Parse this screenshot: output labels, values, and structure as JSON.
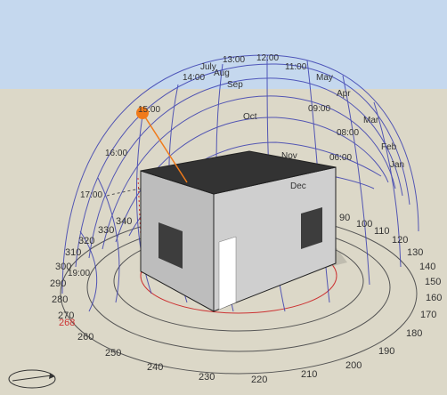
{
  "hour_labels": [
    "11:00",
    "12:00",
    "13:00",
    "14:00",
    "15:00",
    "16:00",
    "17:00",
    "19:00",
    "08:00",
    "09:00",
    "06:00"
  ],
  "month_labels": [
    "July",
    "Aug",
    "Sep",
    "Oct",
    "Nov",
    "Dec",
    "Jan",
    "Feb",
    "Mar",
    "Apr",
    "May"
  ],
  "azimuth_labels": [
    "90",
    "100",
    "110",
    "120",
    "130",
    "140",
    "150",
    "160",
    "170",
    "180",
    "190",
    "200",
    "210",
    "220",
    "230",
    "240",
    "250",
    "260",
    "270",
    "280",
    "290",
    "300",
    "310",
    "320",
    "330",
    "340"
  ],
  "highlight_azimuth": "268",
  "sun": {
    "color": "#f07a1a"
  },
  "colors": {
    "sky": "#c5d8ee",
    "ground": "#dcd8c8",
    "path_lines": "#3a3fb0",
    "house_front": "#c8c8c8",
    "house_side": "#bcbcbc",
    "roof": "#333333",
    "door": "#ffffff",
    "ray": "#f07a1a"
  }
}
